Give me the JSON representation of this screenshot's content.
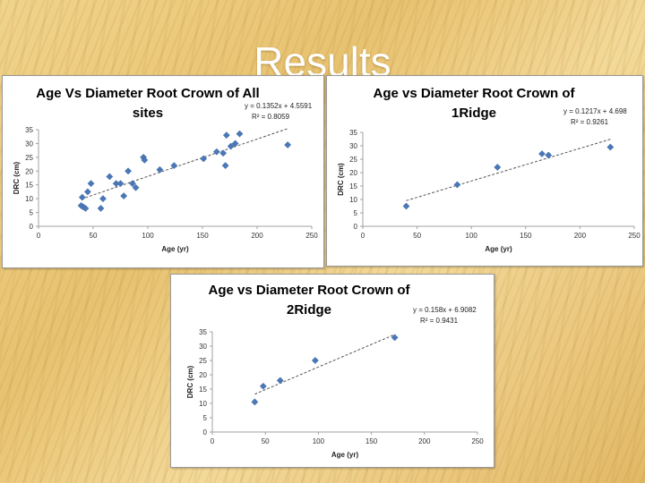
{
  "slide": {
    "title": "Results"
  },
  "chart_data": [
    {
      "type": "scatter",
      "title_lines": [
        "Age Vs Diameter Root Crown of All",
        "sites"
      ],
      "xlabel": "Age (yr)",
      "ylabel": "DRC (cm)",
      "xlim": [
        0,
        250
      ],
      "ylim": [
        0,
        35
      ],
      "xticks": [
        "0",
        "50",
        "100",
        "150",
        "200",
        "250"
      ],
      "yticks": [
        "0",
        "5",
        "10",
        "15",
        "20",
        "25",
        "30",
        "35"
      ],
      "grid": false,
      "marker_color": "#4a78b8",
      "points": [
        {
          "x": 39,
          "y": 7.5
        },
        {
          "x": 40,
          "y": 10.5
        },
        {
          "x": 41,
          "y": 7
        },
        {
          "x": 43,
          "y": 6.5
        },
        {
          "x": 45,
          "y": 12.5
        },
        {
          "x": 48,
          "y": 15.5
        },
        {
          "x": 57,
          "y": 6.5
        },
        {
          "x": 59,
          "y": 10
        },
        {
          "x": 65,
          "y": 18
        },
        {
          "x": 71,
          "y": 15.5
        },
        {
          "x": 75,
          "y": 15.5
        },
        {
          "x": 78,
          "y": 11
        },
        {
          "x": 82,
          "y": 20
        },
        {
          "x": 86,
          "y": 15.5
        },
        {
          "x": 89,
          "y": 14
        },
        {
          "x": 96,
          "y": 25
        },
        {
          "x": 97,
          "y": 24
        },
        {
          "x": 111,
          "y": 20.5
        },
        {
          "x": 124,
          "y": 22
        },
        {
          "x": 151,
          "y": 24.5
        },
        {
          "x": 163,
          "y": 27
        },
        {
          "x": 169,
          "y": 26.5
        },
        {
          "x": 171,
          "y": 22
        },
        {
          "x": 172,
          "y": 33
        },
        {
          "x": 176,
          "y": 29
        },
        {
          "x": 180,
          "y": 30
        },
        {
          "x": 184,
          "y": 33.5
        },
        {
          "x": 228,
          "y": 29.5
        }
      ],
      "trendline": {
        "slope": 0.1352,
        "intercept": 4.5591,
        "x_range": [
          39,
          228
        ],
        "equation": "y = 0.1352x + 4.5591",
        "r2": "R² = 0.8059"
      }
    },
    {
      "type": "scatter",
      "title_lines": [
        "Age vs Diameter Root Crown  of",
        "1Ridge"
      ],
      "xlabel": "Age (yr)",
      "ylabel": "DRC (cm)",
      "xlim": [
        0,
        250
      ],
      "ylim": [
        0,
        35
      ],
      "xticks": [
        "0",
        "50",
        "100",
        "150",
        "200",
        "250"
      ],
      "yticks": [
        "0",
        "5",
        "10",
        "15",
        "20",
        "25",
        "30",
        "35"
      ],
      "grid": false,
      "marker_color": "#4a78b8",
      "points": [
        {
          "x": 40,
          "y": 7.5
        },
        {
          "x": 87,
          "y": 15.5
        },
        {
          "x": 124,
          "y": 22
        },
        {
          "x": 165,
          "y": 27
        },
        {
          "x": 171,
          "y": 26.5
        },
        {
          "x": 228,
          "y": 29.5
        }
      ],
      "trendline": {
        "slope": 0.1217,
        "intercept": 4.698,
        "x_range": [
          40,
          228
        ],
        "equation": "y = 0.1217x + 4.698",
        "r2": "R² = 0.9261"
      }
    },
    {
      "type": "scatter",
      "title_lines": [
        "Age vs Diameter Root Crown  of",
        "2Ridge"
      ],
      "xlabel": "Age (yr)",
      "ylabel": "DRC (cm)",
      "xlim": [
        0,
        250
      ],
      "ylim": [
        0,
        35
      ],
      "xticks": [
        "0",
        "50",
        "100",
        "150",
        "200",
        "250"
      ],
      "yticks": [
        "0",
        "5",
        "10",
        "15",
        "20",
        "25",
        "30",
        "35"
      ],
      "grid": false,
      "marker_color": "#4a78b8",
      "points": [
        {
          "x": 40,
          "y": 10.5
        },
        {
          "x": 48,
          "y": 16
        },
        {
          "x": 64,
          "y": 18
        },
        {
          "x": 97,
          "y": 25
        },
        {
          "x": 172,
          "y": 33
        }
      ],
      "trendline": {
        "slope": 0.158,
        "intercept": 6.9082,
        "x_range": [
          40,
          172
        ],
        "equation": "y = 0.158x + 6.9082",
        "r2": "R² = 0.9431"
      }
    }
  ]
}
